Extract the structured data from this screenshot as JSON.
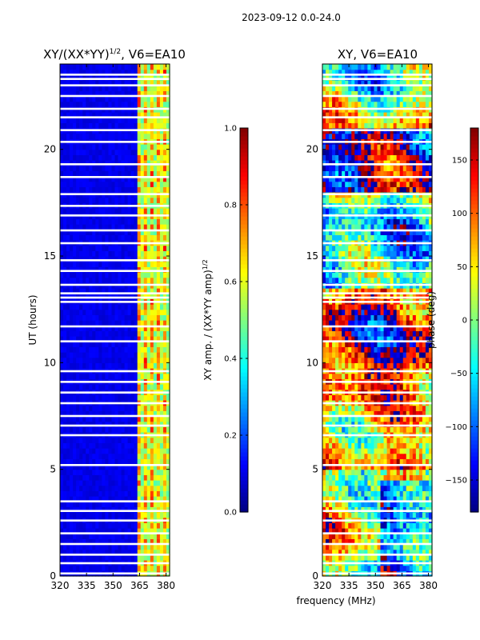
{
  "figure_title": "2023-09-12 0.0-24.0",
  "shared_xlabel": "frequency (MHz)",
  "chart_data": [
    {
      "type": "heatmap",
      "title": "XY/(XX*YY)",
      "title_exp": "1/2",
      "title_suffix": ", V6=EA10",
      "xlabel": "",
      "ylabel": "UT (hours)",
      "xlim": [
        320,
        382
      ],
      "ylim": [
        0,
        24
      ],
      "xticks": [
        "320",
        "335",
        "350",
        "365",
        "380"
      ],
      "yticks": [
        "0",
        "5",
        "10",
        "15",
        "20"
      ],
      "colorbar": {
        "label": "XY amp. / (XX*YY amp)",
        "label_exp": "1/2",
        "range": [
          0.0,
          1.0
        ],
        "ticks": [
          "0.0",
          "0.2",
          "0.4",
          "0.6",
          "0.8",
          "1.0"
        ],
        "colormap": "jet"
      },
      "bright_band_mhz": [
        364,
        383
      ],
      "background_level": 0.12,
      "band_level": 0.55
    },
    {
      "type": "heatmap",
      "title": "XY, V6=EA10",
      "xlabel": "frequency (MHz)",
      "ylabel": "",
      "xlim": [
        320,
        382
      ],
      "ylim": [
        0,
        24
      ],
      "xticks": [
        "320",
        "335",
        "350",
        "365",
        "380"
      ],
      "yticks": [
        "0",
        "5",
        "10",
        "15",
        "20"
      ],
      "colorbar": {
        "label": "phase (deg)",
        "range": [
          -180,
          180
        ],
        "ticks": [
          "−150",
          "−100",
          "−50",
          "0",
          "50",
          "100",
          "150"
        ],
        "tick_values": [
          -150,
          -100,
          -50,
          0,
          50,
          100,
          150
        ],
        "colormap": "jet"
      }
    }
  ],
  "flagged_gaps_ut_hours": [
    0.12,
    0.6,
    1.0,
    1.5,
    2.0,
    2.6,
    3.05,
    3.5,
    5.2,
    6.6,
    7.05,
    7.5,
    8.1,
    8.6,
    9.1,
    9.6,
    11.0,
    11.7,
    12.85,
    13.05,
    13.25,
    13.65,
    14.3,
    14.8,
    15.6,
    16.2,
    16.9,
    17.35,
    17.9,
    18.7,
    19.3,
    20.35,
    20.9,
    21.5,
    21.9,
    22.5,
    23.0,
    23.3,
    23.5
  ]
}
